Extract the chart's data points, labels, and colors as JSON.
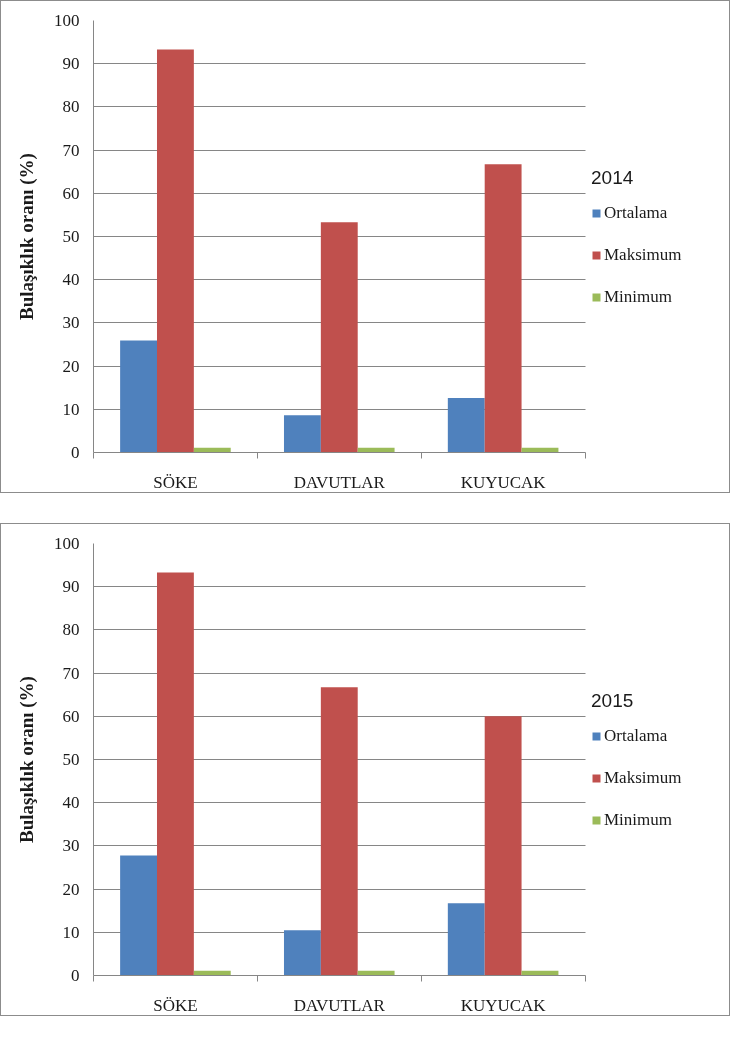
{
  "chart_data": [
    {
      "type": "bar",
      "legend_title": "2014",
      "ylabel": "Bulaşıklık oranı (%)",
      "categories": [
        "SÖKE",
        "DAVUTLAR",
        "KUYUCAK"
      ],
      "series": [
        {
          "name": "Ortalama",
          "color": "#4f81bd",
          "values": [
            25.9,
            8.6,
            12.6
          ]
        },
        {
          "name": "Maksimum",
          "color": "#c0504d",
          "values": [
            93.3,
            53.3,
            66.7
          ]
        },
        {
          "name": "Minimum",
          "color": "#9bbb59",
          "values": [
            1.1,
            1.1,
            1.1
          ]
        }
      ],
      "ylim": [
        0,
        100
      ],
      "yticks": [
        0,
        10,
        20,
        30,
        40,
        50,
        60,
        70,
        80,
        90,
        100
      ],
      "grid": "y",
      "legend": "right"
    },
    {
      "type": "bar",
      "legend_title": "2015",
      "ylabel": "Bulaşıklık oranı (%)",
      "categories": [
        "SÖKE",
        "DAVUTLAR",
        "KUYUCAK"
      ],
      "series": [
        {
          "name": "Ortalama",
          "color": "#4f81bd",
          "values": [
            27.8,
            10.5,
            16.7
          ]
        },
        {
          "name": "Maksimum",
          "color": "#c0504d",
          "values": [
            93.3,
            66.7,
            60.0
          ]
        },
        {
          "name": "Minimum",
          "color": "#9bbb59",
          "values": [
            1.1,
            1.1,
            1.1
          ]
        }
      ],
      "ylim": [
        0,
        100
      ],
      "yticks": [
        0,
        10,
        20,
        30,
        40,
        50,
        60,
        70,
        80,
        90,
        100
      ],
      "grid": "y",
      "legend": "right"
    }
  ]
}
